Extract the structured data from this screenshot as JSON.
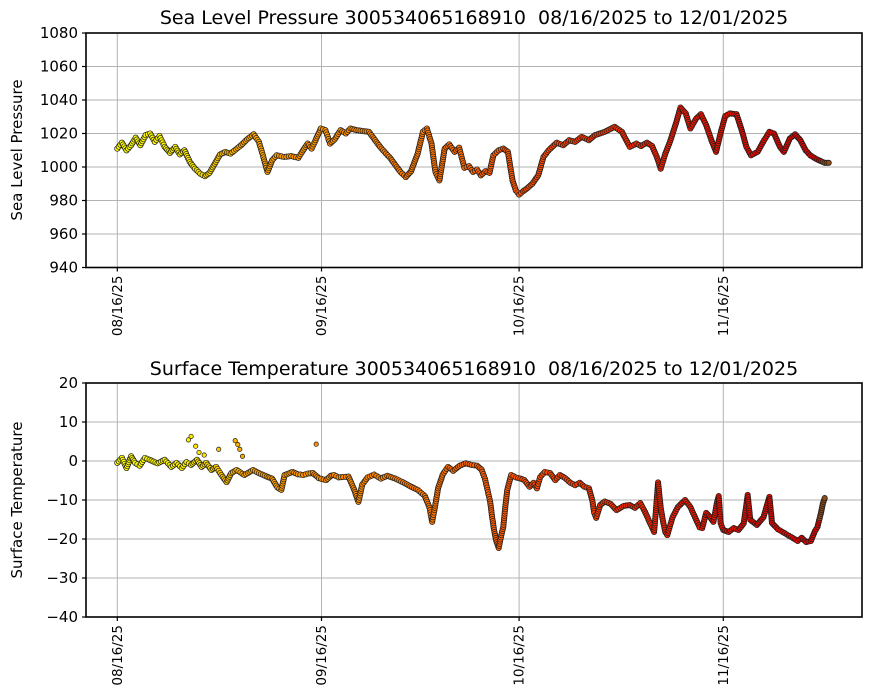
{
  "chart_data": [
    {
      "type": "scatter",
      "title": "Sea Level Pressure 300534065168910  08/16/2025 to 12/01/2025",
      "ylabel": "Sea Level Pressure",
      "xlabel": "",
      "ylim": [
        940,
        1080
      ],
      "grid": true,
      "y_ticks": [
        {
          "value": 1080,
          "label": "1080"
        },
        {
          "value": 1060,
          "label": "1060"
        },
        {
          "value": 1040,
          "label": "1040"
        },
        {
          "value": 1020,
          "label": "1020"
        },
        {
          "value": 1000,
          "label": "1000"
        },
        {
          "value": 980,
          "label": "980"
        },
        {
          "value": 960,
          "label": "960"
        },
        {
          "value": 940,
          "label": "940"
        }
      ],
      "x_ticks": [
        {
          "day": 0,
          "label": "08/16/25"
        },
        {
          "day": 31,
          "label": "09/16/25"
        },
        {
          "day": 61,
          "label": "10/16/25"
        },
        {
          "day": 92,
          "label": "11/16/25"
        }
      ],
      "x_range_days": [
        -4.75,
        113.05
      ],
      "cap_from_day": 107.0,
      "points": [
        [
          0,
          1011
        ],
        [
          0.7,
          1014.5
        ],
        [
          1.4,
          1010
        ],
        [
          2.1,
          1013
        ],
        [
          2.8,
          1017.5
        ],
        [
          3.5,
          1013
        ],
        [
          4.3,
          1019
        ],
        [
          5,
          1020
        ],
        [
          5.7,
          1015
        ],
        [
          6.4,
          1018.5
        ],
        [
          7.2,
          1012
        ],
        [
          8,
          1008.5
        ],
        [
          8.8,
          1012
        ],
        [
          9.5,
          1007.5
        ],
        [
          10.2,
          1010
        ],
        [
          11,
          1003
        ],
        [
          11.8,
          999
        ],
        [
          12.6,
          996
        ],
        [
          13.3,
          994.5
        ],
        [
          14,
          996.5
        ],
        [
          14.8,
          1002
        ],
        [
          15.6,
          1007.5
        ],
        [
          16.4,
          1009
        ],
        [
          17.2,
          1008
        ],
        [
          18,
          1010.5
        ],
        [
          18.8,
          1013
        ],
        [
          19.7,
          1016.5
        ],
        [
          20.7,
          1019.5
        ],
        [
          21.5,
          1015
        ],
        [
          22.1,
          1007
        ],
        [
          22.8,
          997
        ],
        [
          23.5,
          1004
        ],
        [
          24.2,
          1007
        ],
        [
          25.3,
          1006
        ],
        [
          26.4,
          1006.5
        ],
        [
          27.5,
          1005.5
        ],
        [
          28.2,
          1010
        ],
        [
          28.9,
          1014
        ],
        [
          29.5,
          1011
        ],
        [
          30.1,
          1016
        ],
        [
          30.9,
          1023
        ],
        [
          31.6,
          1022
        ],
        [
          32.3,
          1014
        ],
        [
          33,
          1016.5
        ],
        [
          33.9,
          1022
        ],
        [
          34.7,
          1020
        ],
        [
          35.4,
          1023
        ],
        [
          36.3,
          1022
        ],
        [
          38.2,
          1021
        ],
        [
          39.9,
          1012
        ],
        [
          41.5,
          1005
        ],
        [
          43,
          997
        ],
        [
          43.8,
          994
        ],
        [
          44.6,
          997.5
        ],
        [
          45.6,
          1008
        ],
        [
          46.4,
          1021
        ],
        [
          47,
          1023
        ],
        [
          47.7,
          1014
        ],
        [
          48.3,
          997
        ],
        [
          48.9,
          992
        ],
        [
          49.7,
          1011
        ],
        [
          50.4,
          1013.5
        ],
        [
          51.2,
          1009
        ],
        [
          51.9,
          1011.5
        ],
        [
          52.7,
          999.5
        ],
        [
          53.4,
          1000.5
        ],
        [
          54,
          997
        ],
        [
          54.6,
          998.5
        ],
        [
          55.2,
          995
        ],
        [
          55.9,
          997.5
        ],
        [
          56.5,
          996.5
        ],
        [
          57.1,
          1007
        ],
        [
          57.9,
          1010
        ],
        [
          58.6,
          1011
        ],
        [
          59.3,
          1009
        ],
        [
          60,
          992
        ],
        [
          60.5,
          986
        ],
        [
          61,
          983.5
        ],
        [
          61.6,
          985.5
        ],
        [
          62.3,
          987.5
        ],
        [
          63,
          990
        ],
        [
          63.9,
          995
        ],
        [
          64.7,
          1006
        ],
        [
          65.5,
          1010
        ],
        [
          66.7,
          1014.5
        ],
        [
          67.7,
          1013
        ],
        [
          68.6,
          1016
        ],
        [
          69.5,
          1015
        ],
        [
          70.5,
          1018
        ],
        [
          71.6,
          1016
        ],
        [
          72.5,
          1019
        ],
        [
          74,
          1021
        ],
        [
          75.5,
          1024
        ],
        [
          76.6,
          1021
        ],
        [
          77.8,
          1012
        ],
        [
          78.8,
          1014
        ],
        [
          79.5,
          1012.5
        ],
        [
          80.4,
          1014.5
        ],
        [
          81.2,
          1012.5
        ],
        [
          82,
          1005
        ],
        [
          82.5,
          999
        ],
        [
          83.2,
          1008
        ],
        [
          83.9,
          1015
        ],
        [
          84.8,
          1026
        ],
        [
          85.5,
          1035.5
        ],
        [
          86.3,
          1032
        ],
        [
          87,
          1023
        ],
        [
          87.9,
          1029
        ],
        [
          88.6,
          1031.5
        ],
        [
          89.4,
          1025
        ],
        [
          90.2,
          1016
        ],
        [
          90.9,
          1009
        ],
        [
          91.7,
          1022
        ],
        [
          92.3,
          1030.5
        ],
        [
          93,
          1032
        ],
        [
          94,
          1031.5
        ],
        [
          94.8,
          1022
        ],
        [
          95.5,
          1012
        ],
        [
          96.2,
          1007
        ],
        [
          97.2,
          1009
        ],
        [
          98.2,
          1016
        ],
        [
          99,
          1021
        ],
        [
          99.7,
          1020
        ],
        [
          100.6,
          1012
        ],
        [
          101.2,
          1009
        ],
        [
          102.1,
          1017
        ],
        [
          102.9,
          1019.5
        ],
        [
          103.7,
          1016
        ],
        [
          104.5,
          1010
        ],
        [
          105.2,
          1007
        ],
        [
          106,
          1005
        ],
        [
          106.8,
          1003.5
        ],
        [
          107.4,
          1002.5
        ],
        [
          108,
          1002.5
        ]
      ],
      "outliers": []
    },
    {
      "type": "scatter",
      "title": "Surface Temperature 300534065168910  08/16/2025 to 12/01/2025",
      "ylabel": "Surface Temperature",
      "xlabel": "",
      "ylim": [
        -40,
        20
      ],
      "grid": true,
      "y_ticks": [
        {
          "value": 20,
          "label": "20"
        },
        {
          "value": 10,
          "label": "10"
        },
        {
          "value": 0,
          "label": "0"
        },
        {
          "value": -10,
          "label": "−10"
        },
        {
          "value": -20,
          "label": "−20"
        },
        {
          "value": -30,
          "label": "−30"
        },
        {
          "value": -40,
          "label": "−40"
        }
      ],
      "x_ticks": [
        {
          "day": 0,
          "label": "08/16/25"
        },
        {
          "day": 31,
          "label": "09/16/25"
        },
        {
          "day": 61,
          "label": "10/16/25"
        },
        {
          "day": 92,
          "label": "11/16/25"
        }
      ],
      "x_range_days": [
        -4.75,
        113.05
      ],
      "cap_from_day": 106.6,
      "points": [
        [
          0,
          -0.5
        ],
        [
          0.7,
          0.8
        ],
        [
          1.4,
          -1.8
        ],
        [
          2.1,
          1.2
        ],
        [
          2.7,
          -0.5
        ],
        [
          3.4,
          -1.2
        ],
        [
          4.2,
          0.8
        ],
        [
          4.9,
          0.3
        ],
        [
          6.1,
          -0.6
        ],
        [
          7.2,
          0.3
        ],
        [
          8.2,
          -1.5
        ],
        [
          9,
          -0.5
        ],
        [
          9.8,
          -1.8
        ],
        [
          10.5,
          -0.3
        ],
        [
          11.2,
          -1
        ],
        [
          12.1,
          0.3
        ],
        [
          12.8,
          -1.5
        ],
        [
          13.5,
          -0.5
        ],
        [
          14.3,
          -2.3
        ],
        [
          15,
          -1.5
        ],
        [
          15.8,
          -3.6
        ],
        [
          16.6,
          -5.4
        ],
        [
          17.3,
          -3.1
        ],
        [
          18.1,
          -2.3
        ],
        [
          19.3,
          -3.6
        ],
        [
          20.6,
          -2.3
        ],
        [
          21.5,
          -3.1
        ],
        [
          22.7,
          -4
        ],
        [
          23.5,
          -4.5
        ],
        [
          24.3,
          -6.8
        ],
        [
          24.9,
          -7.4
        ],
        [
          25.4,
          -3.6
        ],
        [
          26.6,
          -2.8
        ],
        [
          27.4,
          -3.4
        ],
        [
          28.2,
          -3.6
        ],
        [
          29,
          -3.2
        ],
        [
          29.7,
          -3.1
        ],
        [
          30.6,
          -4.4
        ],
        [
          31.7,
          -4.9
        ],
        [
          32.4,
          -3.8
        ],
        [
          32.9,
          -3.6
        ],
        [
          33.6,
          -4.2
        ],
        [
          34.3,
          -4.1
        ],
        [
          35.1,
          -4
        ],
        [
          36,
          -7.5
        ],
        [
          36.6,
          -10.5
        ],
        [
          37.2,
          -6
        ],
        [
          38,
          -4.2
        ],
        [
          39,
          -3.5
        ],
        [
          40,
          -4.5
        ],
        [
          41,
          -3.8
        ],
        [
          42.2,
          -4.5
        ],
        [
          43.4,
          -5.5
        ],
        [
          44.5,
          -6.5
        ],
        [
          45.6,
          -7.4
        ],
        [
          46.7,
          -9
        ],
        [
          47.4,
          -12
        ],
        [
          47.8,
          -15.6
        ],
        [
          48.2,
          -12
        ],
        [
          48.7,
          -7
        ],
        [
          49.4,
          -3.5
        ],
        [
          50.2,
          -1.5
        ],
        [
          51,
          -2.5
        ],
        [
          52,
          -1.2
        ],
        [
          52.9,
          -0.6
        ],
        [
          53.8,
          -1
        ],
        [
          54.6,
          -1.2
        ],
        [
          55.3,
          -2.2
        ],
        [
          55.8,
          -4.5
        ],
        [
          56.2,
          -7.4
        ],
        [
          56.6,
          -10.4
        ],
        [
          56.9,
          -14.3
        ],
        [
          57.2,
          -17.7
        ],
        [
          57.5,
          -20.3
        ],
        [
          57.9,
          -22.3
        ],
        [
          58.3,
          -19
        ],
        [
          58.6,
          -16.9
        ],
        [
          58.9,
          -11.8
        ],
        [
          59.2,
          -7.4
        ],
        [
          59.8,
          -3.6
        ],
        [
          60.5,
          -4.2
        ],
        [
          61.2,
          -4.5
        ],
        [
          61.8,
          -4.9
        ],
        [
          62.6,
          -6.6
        ],
        [
          63.2,
          -5.6
        ],
        [
          63.7,
          -7
        ],
        [
          64.2,
          -4.1
        ],
        [
          64.9,
          -2.8
        ],
        [
          65.7,
          -3.1
        ],
        [
          66.5,
          -4.9
        ],
        [
          67.2,
          -3.6
        ],
        [
          68,
          -4.4
        ],
        [
          68.8,
          -5.6
        ],
        [
          69.5,
          -6.2
        ],
        [
          70.2,
          -5.6
        ],
        [
          70.9,
          -6.6
        ],
        [
          71.6,
          -7
        ],
        [
          72.1,
          -10
        ],
        [
          72.4,
          -13.3
        ],
        [
          72.7,
          -14.6
        ],
        [
          73.3,
          -11.3
        ],
        [
          74,
          -10.4
        ],
        [
          74.9,
          -11
        ],
        [
          75.8,
          -12.6
        ],
        [
          76.9,
          -11.5
        ],
        [
          77.8,
          -11.3
        ],
        [
          78.6,
          -12
        ],
        [
          79.4,
          -10.8
        ],
        [
          80.1,
          -13
        ],
        [
          80.9,
          -16
        ],
        [
          81.5,
          -18.2
        ],
        [
          81.8,
          -12
        ],
        [
          82.1,
          -5.5
        ],
        [
          82.5,
          -12
        ],
        [
          82.9,
          -16
        ],
        [
          83.2,
          -18.2
        ],
        [
          83.5,
          -19
        ],
        [
          84.3,
          -14.4
        ],
        [
          85.1,
          -11.8
        ],
        [
          86.2,
          -10
        ],
        [
          87,
          -11.8
        ],
        [
          87.7,
          -14.4
        ],
        [
          88.4,
          -17
        ],
        [
          88.8,
          -17.2
        ],
        [
          89.4,
          -13.3
        ],
        [
          90,
          -14.4
        ],
        [
          90.5,
          -15.6
        ],
        [
          91,
          -11
        ],
        [
          91.3,
          -9
        ],
        [
          91.6,
          -16
        ],
        [
          92,
          -17.7
        ],
        [
          92.8,
          -18.2
        ],
        [
          93.6,
          -17.2
        ],
        [
          94.3,
          -17.7
        ],
        [
          95.1,
          -16
        ],
        [
          95.7,
          -8.7
        ],
        [
          96.1,
          -15.1
        ],
        [
          97.1,
          -16.4
        ],
        [
          98.1,
          -14.4
        ],
        [
          99,
          -9.2
        ],
        [
          99.4,
          -15.9
        ],
        [
          100.3,
          -17.5
        ],
        [
          101.3,
          -18.5
        ],
        [
          102.3,
          -19.5
        ],
        [
          103.3,
          -20.5
        ],
        [
          103.9,
          -19.7
        ],
        [
          104.6,
          -20.8
        ],
        [
          105.3,
          -20.5
        ],
        [
          105.9,
          -18
        ],
        [
          106.3,
          -16.9
        ],
        [
          106.8,
          -13.5
        ],
        [
          107.1,
          -11
        ],
        [
          107.4,
          -9.5
        ]
      ],
      "outliers": [
        [
          10.8,
          5.4
        ],
        [
          11.2,
          6.3
        ],
        [
          11.9,
          3.8
        ],
        [
          12.4,
          2.2
        ],
        [
          13.2,
          1.5
        ],
        [
          15.4,
          3.0
        ],
        [
          17.9,
          5.2
        ],
        [
          18.3,
          4.2
        ],
        [
          18.6,
          3.0
        ],
        [
          19,
          1.2
        ],
        [
          30.2,
          4.3
        ]
      ]
    }
  ],
  "style": {
    "color_stops": [
      [
        0,
        "#ffff00"
      ],
      [
        9,
        "#fff400"
      ],
      [
        13,
        "#ffe400"
      ],
      [
        16,
        "#ffc400"
      ],
      [
        19,
        "#ffa800"
      ],
      [
        26,
        "#ff9800"
      ],
      [
        36,
        "#ff8a00"
      ],
      [
        46,
        "#ff7800"
      ],
      [
        54,
        "#ff6500"
      ],
      [
        62,
        "#ff5000"
      ],
      [
        70,
        "#ff3d00"
      ],
      [
        78,
        "#f62a00"
      ],
      [
        86,
        "#ec1800"
      ],
      [
        94,
        "#e40d00"
      ],
      [
        102,
        "#de0600"
      ],
      [
        108,
        "#db0400"
      ]
    ],
    "cap_color": "#8b4a1a",
    "grid_color": "#b3b3b3",
    "edge_color": "#1c1c1c",
    "spine_color": "#000000",
    "background": "#ffffff"
  }
}
